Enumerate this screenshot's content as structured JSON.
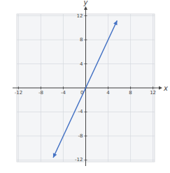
{
  "chart_data": {
    "type": "line",
    "x": [
      -5.8,
      5.6
    ],
    "values": [
      -11.6,
      11.2
    ],
    "color": "#4472c4",
    "xlabel": "x",
    "ylabel": "y",
    "xlim": [
      -12.3,
      12.3
    ],
    "ylim": [
      -12.3,
      12.3
    ],
    "xticks": [
      -12,
      -8,
      -4,
      0,
      4,
      8,
      12
    ],
    "yticks": [
      -12,
      -8,
      -4,
      0,
      4,
      8,
      12
    ],
    "grid": true
  }
}
